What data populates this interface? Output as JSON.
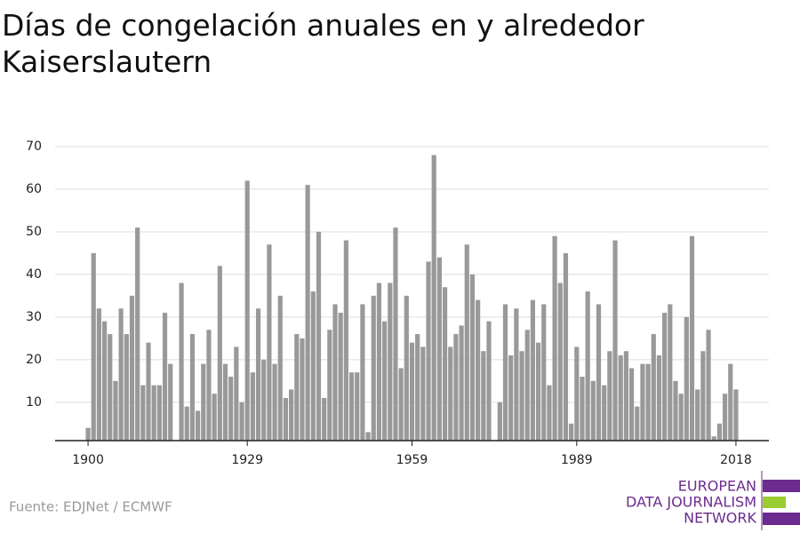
{
  "chart_data": {
    "type": "bar",
    "title": "Días de congelación anuales en y alrededor Kaiserslautern",
    "source": "Fuente: EDJNet / ECMWF",
    "logo": [
      "EUROPEAN",
      "DATA JOURNALISM",
      "NETWORK"
    ],
    "color": "#999999",
    "x": [
      1900,
      1901,
      1902,
      1903,
      1904,
      1905,
      1906,
      1907,
      1908,
      1909,
      1910,
      1911,
      1912,
      1913,
      1914,
      1915,
      1916,
      1917,
      1918,
      1919,
      1920,
      1921,
      1922,
      1923,
      1924,
      1925,
      1926,
      1927,
      1928,
      1929,
      1930,
      1931,
      1932,
      1933,
      1934,
      1935,
      1936,
      1937,
      1938,
      1939,
      1940,
      1941,
      1942,
      1943,
      1944,
      1945,
      1946,
      1947,
      1948,
      1949,
      1950,
      1951,
      1952,
      1953,
      1954,
      1955,
      1956,
      1957,
      1958,
      1959,
      1960,
      1961,
      1962,
      1963,
      1964,
      1965,
      1966,
      1967,
      1968,
      1969,
      1970,
      1971,
      1972,
      1973,
      1974,
      1975,
      1976,
      1977,
      1978,
      1979,
      1980,
      1981,
      1982,
      1983,
      1984,
      1985,
      1986,
      1987,
      1988,
      1989,
      1990,
      1991,
      1992,
      1993,
      1994,
      1995,
      1996,
      1997,
      1998,
      1999,
      2000,
      2001,
      2002,
      2003,
      2004,
      2005,
      2006,
      2007,
      2008,
      2009,
      2010,
      2011,
      2012,
      2013,
      2014,
      2015,
      2016,
      2017,
      2018
    ],
    "values": [
      4,
      45,
      32,
      29,
      26,
      15,
      32,
      26,
      35,
      51,
      14,
      24,
      14,
      14,
      31,
      19,
      null,
      38,
      9,
      26,
      8,
      19,
      27,
      12,
      42,
      19,
      16,
      23,
      10,
      62,
      17,
      32,
      20,
      47,
      19,
      35,
      11,
      13,
      26,
      25,
      61,
      36,
      50,
      11,
      27,
      33,
      31,
      48,
      17,
      17,
      33,
      3,
      35,
      38,
      29,
      38,
      51,
      18,
      35,
      24,
      26,
      23,
      43,
      68,
      44,
      37,
      23,
      26,
      28,
      47,
      40,
      34,
      22,
      29,
      null,
      10,
      33,
      21,
      32,
      22,
      27,
      34,
      24,
      33,
      14,
      49,
      38,
      45,
      5,
      23,
      16,
      36,
      15,
      33,
      14,
      22,
      48,
      21,
      22,
      18,
      9,
      19,
      19,
      26,
      21,
      31,
      33,
      15,
      12,
      30,
      49,
      13,
      22,
      27,
      2,
      5,
      12,
      19,
      13
    ],
    "xlim": [
      1894,
      2024
    ],
    "xticks": [
      1900,
      1929,
      1959,
      1989,
      2018
    ],
    "ylim": [
      1,
      70
    ],
    "yticks": [
      10,
      20,
      30,
      40,
      50,
      60,
      70
    ],
    "grid": true
  }
}
